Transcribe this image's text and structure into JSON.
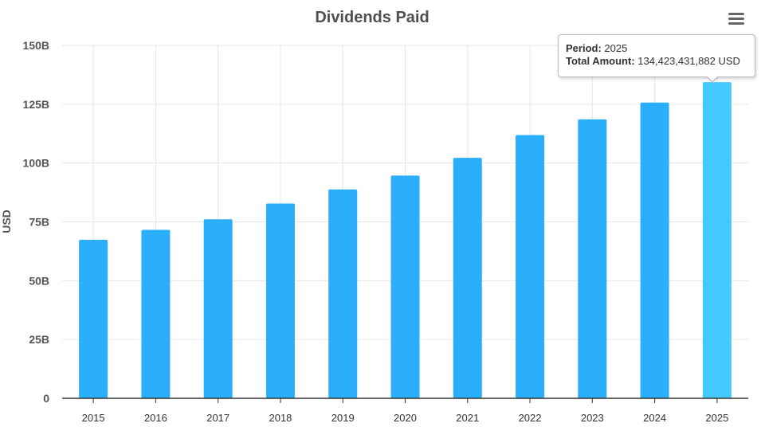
{
  "menu": {
    "icon": "hamburger-menu-icon"
  },
  "tooltip": {
    "period_label": "Period:",
    "period_value": "2025",
    "amount_label": "Total Amount:",
    "amount_value": "134,423,431,882 USD"
  },
  "colors": {
    "bar": "#2baefc",
    "bar_highlight": "#45c8fd",
    "grid": "#e6e6e6",
    "axis": "#333333"
  },
  "chart_data": {
    "type": "bar",
    "title": "Dividends Paid",
    "xlabel": "",
    "ylabel": "USD",
    "categories": [
      "2015",
      "2016",
      "2017",
      "2018",
      "2019",
      "2020",
      "2021",
      "2022",
      "2023",
      "2024",
      "2025"
    ],
    "series": [
      {
        "values": [
          67.4,
          71.6,
          76.1,
          82.8,
          88.8,
          94.7,
          102.2,
          111.9,
          118.6,
          125.7,
          134.4
        ]
      }
    ],
    "unit": "billion USD",
    "highlighted_category": "2025",
    "ylim": [
      0,
      150
    ],
    "yticks": [
      0,
      25,
      50,
      75,
      100,
      125,
      150
    ],
    "ytick_labels": [
      "0",
      "25B",
      "50B",
      "75B",
      "100B",
      "125B",
      "150B"
    ],
    "grid": true,
    "legend": "none"
  }
}
